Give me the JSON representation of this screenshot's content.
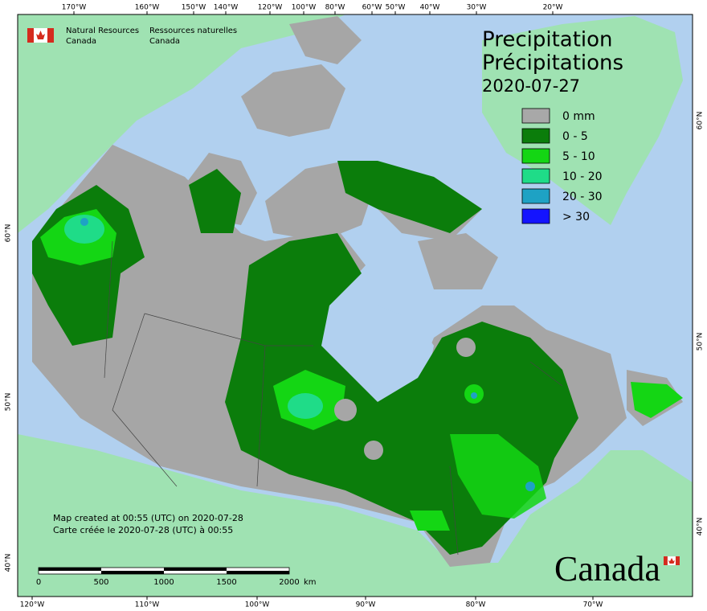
{
  "header": {
    "agency_en": [
      "Natural Resources",
      "Canada"
    ],
    "agency_fr": [
      "Ressources naturelles",
      "Canada"
    ]
  },
  "title": [
    "Precipitation",
    "Précipitations"
  ],
  "date": "2020-07-27",
  "legend": [
    {
      "label": "0 mm",
      "color": "#a8a8a8"
    },
    {
      "label": "0 - 5",
      "color": "#0b7d0b"
    },
    {
      "label": "5 - 10",
      "color": "#14d614"
    },
    {
      "label": "10 - 20",
      "color": "#1fdc88"
    },
    {
      "label": "20 - 30",
      "color": "#1ea2c4"
    },
    {
      "label": "> 30",
      "color": "#1414ff"
    }
  ],
  "graticule": {
    "top": [
      "170°W",
      "160°W",
      "150°W",
      "140°W",
      "120°W",
      "100°W",
      "80°W",
      "60°W",
      "50°W",
      "40°W",
      "30°W",
      "20°W"
    ],
    "bottom": [
      "120°W",
      "110°W",
      "100°W",
      "90°W",
      "80°W",
      "70°W"
    ],
    "left": [
      "60°N",
      "50°N",
      "40°N"
    ],
    "right": [
      "60°N",
      "50°N",
      "40°N"
    ]
  },
  "notes": [
    "Map created at 00:55 (UTC) on 2020-07-28",
    "Carte créée le 2020-07-28 (UTC) à 00:55"
  ],
  "scale": {
    "ticks": [
      "0",
      "500",
      "1000",
      "1500",
      "2000"
    ],
    "unit": "km"
  },
  "wordmark": "Canada"
}
